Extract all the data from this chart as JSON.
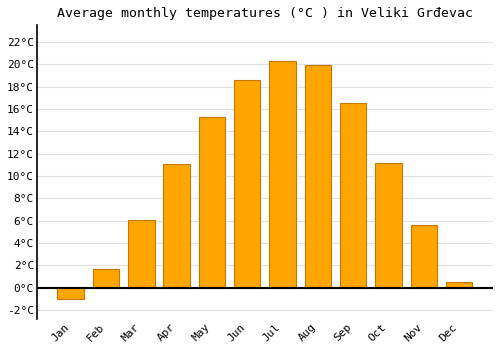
{
  "title": "Average monthly temperatures (°C ) in Veliki Grđevac",
  "months": [
    "Jan",
    "Feb",
    "Mar",
    "Apr",
    "May",
    "Jun",
    "Jul",
    "Aug",
    "Sep",
    "Oct",
    "Nov",
    "Dec"
  ],
  "values": [
    -1.0,
    1.7,
    6.1,
    11.1,
    15.3,
    18.6,
    20.3,
    19.9,
    16.5,
    11.2,
    5.6,
    0.5
  ],
  "bar_color": "#FFA500",
  "bar_edge_color": "#C87800",
  "background_color": "#ffffff",
  "grid_color": "#e0e0e0",
  "ytick_labels": [
    "-2°C",
    "0°C",
    "2°C",
    "4°C",
    "6°C",
    "8°C",
    "10°C",
    "12°C",
    "14°C",
    "16°C",
    "18°C",
    "20°C",
    "22°C"
  ],
  "ytick_values": [
    -2,
    0,
    2,
    4,
    6,
    8,
    10,
    12,
    14,
    16,
    18,
    20,
    22
  ],
  "ylim": [
    -2.8,
    23.5
  ],
  "title_fontsize": 9.5,
  "tick_fontsize": 8,
  "bar_width": 0.75
}
